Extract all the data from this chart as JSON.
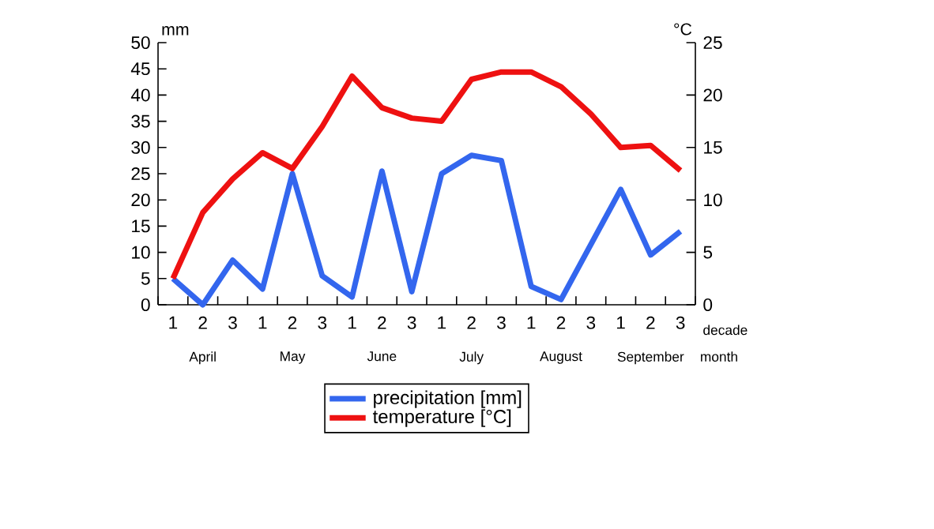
{
  "chart_data": {
    "type": "line",
    "categories": [
      "1",
      "2",
      "3",
      "1",
      "2",
      "3",
      "1",
      "2",
      "3",
      "1",
      "2",
      "3",
      "1",
      "2",
      "3",
      "1",
      "2",
      "3"
    ],
    "xlabel": "decade",
    "ylabel": "mm",
    "y2label": "°C",
    "annotations": [
      "April",
      "May",
      "June",
      "July",
      "August",
      "September",
      "month"
    ],
    "series": [
      {
        "name": "precipitation [mm]",
        "color": "#3366ee",
        "values": [
          5,
          0,
          8.5,
          3,
          25,
          5.5,
          1.5,
          25.5,
          2.5,
          25,
          28.5,
          27.5,
          3.5,
          1,
          11.5,
          22,
          9.5,
          14
        ]
      },
      {
        "name": "temperature [°C]",
        "color": "#ee1111",
        "axis": "y2",
        "values": [
          2.5,
          8.8,
          12,
          14.5,
          13,
          17,
          21.8,
          18.8,
          17.8,
          17.5,
          21.5,
          22.2,
          22.2,
          20.8,
          18.2,
          15,
          15.2,
          12.8
        ]
      }
    ],
    "ylim": [
      0,
      50
    ],
    "yticks": [
      0,
      5,
      10,
      15,
      20,
      25,
      30,
      35,
      40,
      45,
      50
    ],
    "y2lim": [
      0,
      25
    ],
    "y2ticks": [
      0,
      5,
      10,
      15,
      20,
      25
    ],
    "legend": "bottom",
    "grid": false,
    "marker": "none",
    "line_style": "solid"
  }
}
